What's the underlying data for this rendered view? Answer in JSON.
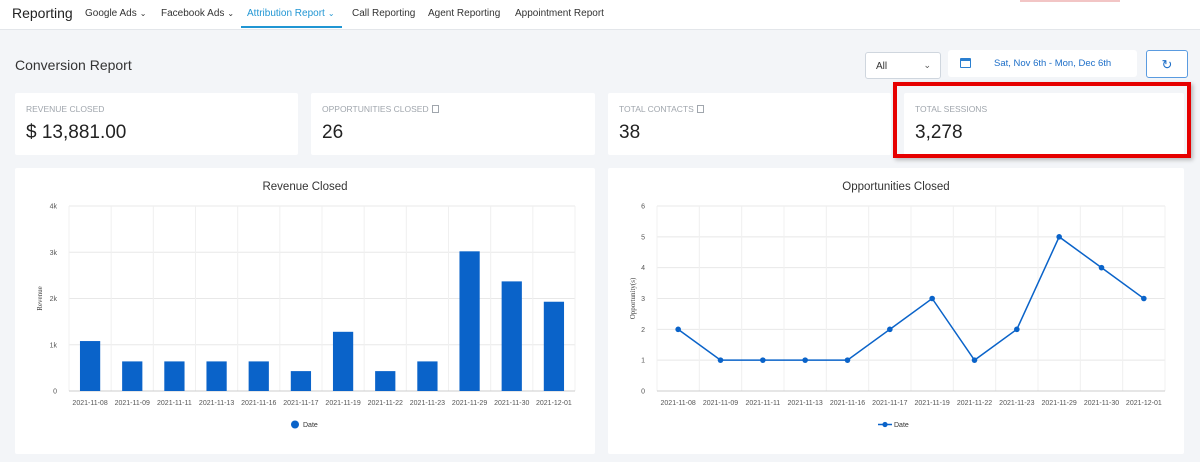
{
  "nav": {
    "brand": "Reporting",
    "items": [
      {
        "label": "Google Ads",
        "has_caret": true
      },
      {
        "label": "Facebook Ads",
        "has_caret": true
      },
      {
        "label": "Attribution Report",
        "has_caret": true,
        "active": true
      },
      {
        "label": "Call Reporting",
        "has_caret": false
      },
      {
        "label": "Agent Reporting",
        "has_caret": false
      },
      {
        "label": "Appointment Report",
        "has_caret": false
      }
    ]
  },
  "page": {
    "title": "Conversion Report"
  },
  "filters": {
    "select_value": "All",
    "date_range": "Sat, Nov 6th - Mon, Dec 6th",
    "refresh_icon": "refresh-icon"
  },
  "stats": [
    {
      "label": "REVENUE CLOSED",
      "value": "$ 13,881.00",
      "doc_icon": false
    },
    {
      "label": "OPPORTUNITIES CLOSED",
      "value": "26",
      "doc_icon": true
    },
    {
      "label": "TOTAL CONTACTS",
      "value": "38",
      "doc_icon": true
    },
    {
      "label": "TOTAL SESSIONS",
      "value": "3,278",
      "doc_icon": false
    }
  ],
  "colors": {
    "accent": "#2196d3",
    "bar": "#0a63c9",
    "highlight": "#e60000"
  },
  "chart_data": [
    {
      "type": "bar",
      "title": "Revenue Closed",
      "ylabel": "Revenue",
      "categories": [
        "2021-11-08",
        "2021-11-09",
        "2021-11-11",
        "2021-11-13",
        "2021-11-16",
        "2021-11-17",
        "2021-11-19",
        "2021-11-22",
        "2021-11-23",
        "2021-11-29",
        "2021-11-30",
        "2021-12-01"
      ],
      "series": [
        {
          "name": "Date",
          "values": [
            1080,
            640,
            640,
            640,
            640,
            430,
            1280,
            430,
            640,
            3020,
            2370,
            1930
          ]
        }
      ],
      "yticks": [
        "0",
        "1k",
        "2k",
        "3k",
        "4k"
      ],
      "ylim": [
        0,
        4000
      ],
      "grid": true,
      "legend": "bottom"
    },
    {
      "type": "line",
      "title": "Opportunities Closed",
      "ylabel": "Opportunity(s)",
      "categories": [
        "2021-11-08",
        "2021-11-09",
        "2021-11-11",
        "2021-11-13",
        "2021-11-16",
        "2021-11-17",
        "2021-11-19",
        "2021-11-22",
        "2021-11-23",
        "2021-11-29",
        "2021-11-30",
        "2021-12-01"
      ],
      "series": [
        {
          "name": "Date",
          "values": [
            2,
            1,
            1,
            1,
            1,
            2,
            3,
            1,
            2,
            5,
            4,
            3
          ]
        }
      ],
      "yticks": [
        "0",
        "1",
        "2",
        "3",
        "4",
        "5",
        "6"
      ],
      "ylim": [
        0,
        6
      ],
      "grid": true,
      "legend": "bottom"
    }
  ]
}
